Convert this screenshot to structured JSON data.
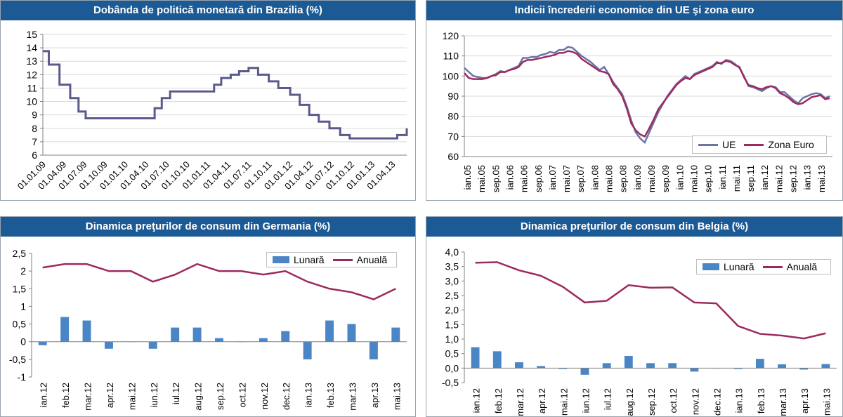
{
  "chart_data": [
    {
      "type": "line",
      "title": "Dobânda de politică monetară din Brazilia (%)",
      "ylim": [
        6,
        15
      ],
      "yticks": [
        "6",
        "7",
        "8",
        "9",
        "10",
        "11",
        "12",
        "13",
        "14",
        "15"
      ],
      "xticks": [
        "01.01.09",
        "01.04.09",
        "01.07.09",
        "01.10.09",
        "01.01.10",
        "01.04.10",
        "01.07.10",
        "01.10.10",
        "01.01.11",
        "01.04.11",
        "01.07.11",
        "01.10.11",
        "01.01.12",
        "01.04.12",
        "01.07.12",
        "01.10.12",
        "01.01.13",
        "01.04.13"
      ],
      "grid": true,
      "series": [
        {
          "color": "#5a5a8c",
          "steps": [
            [
              0,
              13.75
            ],
            [
              0.5,
              12.75
            ],
            [
              1.4,
              11.25
            ],
            [
              2.3,
              10.25
            ],
            [
              3.0,
              9.25
            ],
            [
              3.6,
              8.75
            ],
            [
              9.4,
              9.5
            ],
            [
              10.0,
              10.25
            ],
            [
              10.7,
              10.75
            ],
            [
              14.4,
              11.25
            ],
            [
              15.0,
              11.75
            ],
            [
              15.8,
              12.0
            ],
            [
              16.5,
              12.25
            ],
            [
              17.3,
              12.5
            ],
            [
              18.1,
              12.0
            ],
            [
              19.0,
              11.5
            ],
            [
              19.8,
              11.0
            ],
            [
              20.8,
              10.5
            ],
            [
              21.6,
              9.75
            ],
            [
              22.4,
              9.0
            ],
            [
              23.2,
              8.5
            ],
            [
              24.1,
              8.0
            ],
            [
              25.0,
              7.5
            ],
            [
              25.8,
              7.25
            ],
            [
              29.8,
              7.5
            ],
            [
              30.6,
              8.0
            ]
          ],
          "xmax": 30.6
        }
      ]
    },
    {
      "type": "line",
      "title": "Indicii încrederii economice din UE şi zona euro",
      "ylim": [
        60,
        120
      ],
      "yticks": [
        "60",
        "70",
        "80",
        "90",
        "100",
        "110",
        "120"
      ],
      "xticks": [
        "ian.05",
        "mai.05",
        "sep.05",
        "ian.06",
        "mai.06",
        "sep.06",
        "ian.07",
        "mai.07",
        "sep.07",
        "ian.08",
        "mai.08",
        "sep.08",
        "ian.09",
        "mai.09",
        "sep.09",
        "ian.10",
        "mai.10",
        "sep.10",
        "ian.11",
        "mai.11",
        "sep.11",
        "ian.12",
        "mai.12",
        "sep.12",
        "ian.13",
        "mai.13"
      ],
      "grid": true,
      "legend": "bottom-right",
      "series": [
        {
          "name": "UE",
          "color": "#6b74a8",
          "values": [
            104,
            102,
            100,
            99.5,
            99,
            99,
            100,
            101,
            102.5,
            102,
            103,
            104,
            105,
            109,
            109,
            109.5,
            109.5,
            110.5,
            111,
            112,
            111.5,
            113,
            113,
            114.5,
            114,
            112,
            110,
            108.5,
            107,
            105,
            103,
            104.5,
            101,
            97,
            94,
            91,
            85,
            78,
            72,
            69,
            67,
            72,
            77,
            82,
            86,
            90,
            93,
            96,
            98,
            100,
            98.5,
            101,
            102,
            103,
            104,
            105,
            107,
            106,
            108,
            107.5,
            106,
            104,
            100,
            95,
            94.5,
            93.5,
            92.5,
            94,
            95,
            94.5,
            92,
            92,
            90,
            88,
            86.5,
            89,
            90,
            91,
            91.5,
            91,
            89,
            90
          ],
          "xmax": 101
        },
        {
          "name": "Zona Euro",
          "color": "#9c2a5e",
          "values": [
            101.5,
            99,
            98.5,
            98.5,
            98.5,
            99,
            100,
            100.5,
            102,
            102,
            103,
            103.5,
            104.5,
            107,
            108,
            108,
            108.5,
            109,
            109.5,
            110,
            110.5,
            111.5,
            111.5,
            112.5,
            112,
            111,
            108.5,
            107,
            105.5,
            104,
            102.5,
            102,
            101,
            96,
            93.5,
            90,
            84,
            76.5,
            73,
            71,
            70,
            74,
            78.5,
            83.5,
            86.5,
            89.5,
            92.5,
            95.5,
            97.5,
            99,
            98.5,
            100.5,
            101.5,
            102.5,
            103.5,
            104.5,
            106.5,
            106.5,
            107.5,
            107,
            105.5,
            104.5,
            99.5,
            95.5,
            95,
            94,
            93.5,
            94.5,
            95,
            94,
            91.5,
            90.5,
            89,
            87,
            86,
            86.5,
            88,
            89.5,
            90,
            90.5,
            88.5,
            89
          ],
          "xmax": 101
        }
      ]
    },
    {
      "type": "bar+line",
      "title": "Dinamica preţurilor de consum din Germania (%)",
      "ylim": [
        -1,
        2.5
      ],
      "yticks": [
        "-1",
        "-0,5",
        "0",
        "0,5",
        "1",
        "1,5",
        "2",
        "2,5"
      ],
      "categories": [
        "ian.12",
        "feb.12",
        "mar.12",
        "apr.12",
        "mai.12",
        "iun.12",
        "iul.12",
        "aug.12",
        "sep.12",
        "oct.12",
        "nov.12",
        "dec.12",
        "ian.13",
        "feb.13",
        "mar.13",
        "apr.13",
        "mai.13"
      ],
      "legend": "top-right",
      "series": [
        {
          "name": "Lunară",
          "kind": "bar",
          "color": "#4a86c5",
          "values": [
            -0.1,
            0.7,
            0.6,
            -0.2,
            0,
            -0.2,
            0.4,
            0.4,
            0.1,
            0,
            0.1,
            0.3,
            -0.5,
            0.6,
            0.5,
            -0.5,
            0.4
          ]
        },
        {
          "name": "Anuală",
          "kind": "line",
          "color": "#9c2a5e",
          "values": [
            2.1,
            2.2,
            2.2,
            2.0,
            2.0,
            1.7,
            1.9,
            2.2,
            2.0,
            2.0,
            1.9,
            2.0,
            1.7,
            1.5,
            1.4,
            1.2,
            1.5
          ]
        }
      ]
    },
    {
      "type": "bar+line",
      "title": "Dinamica preţurilor de consum din Belgia (%)",
      "ylim": [
        -0.5,
        4.0
      ],
      "yticks": [
        "-0,5",
        "0,0",
        "0,5",
        "1,0",
        "1,5",
        "2,0",
        "2,5",
        "3,0",
        "3,5",
        "4,0"
      ],
      "categories": [
        "ian.12",
        "feb.12",
        "mar.12",
        "apr.12",
        "mai.12",
        "iun.12",
        "iul.12",
        "aug.12",
        "sep.12",
        "oct.12",
        "nov.12",
        "dec.12",
        "ian.13",
        "feb.13",
        "mar.13",
        "apr.13",
        "mai.13"
      ],
      "legend": "top-right",
      "series": [
        {
          "name": "Lunară",
          "kind": "bar",
          "color": "#4a86c5",
          "values": [
            0.72,
            0.58,
            0.2,
            0.07,
            -0.03,
            -0.23,
            0.17,
            0.42,
            0.17,
            0.17,
            -0.12,
            0,
            -0.03,
            0.32,
            0.13,
            -0.05,
            0.14
          ]
        },
        {
          "name": "Anuală",
          "kind": "line",
          "color": "#9c2a5e",
          "values": [
            3.63,
            3.65,
            3.37,
            3.18,
            2.8,
            2.26,
            2.32,
            2.86,
            2.77,
            2.78,
            2.26,
            2.23,
            1.45,
            1.18,
            1.12,
            1.02,
            1.2
          ]
        }
      ]
    }
  ]
}
